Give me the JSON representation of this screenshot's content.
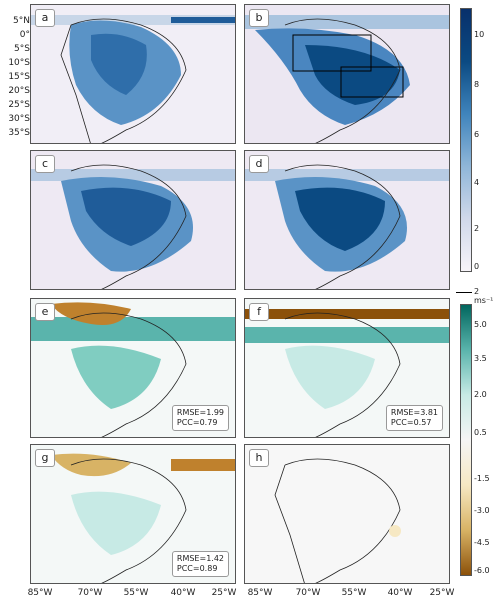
{
  "panels": {
    "a": {
      "label": "a"
    },
    "b": {
      "label": "b"
    },
    "c": {
      "label": "c"
    },
    "d": {
      "label": "d"
    },
    "e": {
      "label": "e",
      "rmse": "RMSE=1.99",
      "pcc": "PCC=0.79"
    },
    "f": {
      "label": "f",
      "rmse": "RMSE=3.81",
      "pcc": "PCC=0.57"
    },
    "g": {
      "label": "g",
      "rmse": "RMSE=1.42",
      "pcc": "PCC=0.89"
    },
    "h": {
      "label": "h"
    }
  },
  "lat_labels": [
    "5°N",
    "0°",
    "5°S",
    "10°S",
    "15°S",
    "20°S",
    "25°S",
    "30°S",
    "35°S"
  ],
  "lon_labels": [
    "85°W",
    "70°W",
    "55°W",
    "40°W",
    "25°W"
  ],
  "colorbar_top": {
    "ticks": [
      "10",
      "8",
      "6",
      "4",
      "2",
      "0"
    ],
    "colors": [
      "#f7f4f9",
      "#d0d8ea",
      "#8fb6d8",
      "#3f84bc",
      "#0b4a82",
      "#08306b"
    ]
  },
  "wind_key": "2 ms⁻¹",
  "colorbar_bottom": {
    "ticks": [
      "5.0",
      "3.5",
      "2.0",
      "0.5",
      "-1.5",
      "-3.0",
      "-4.5",
      "-6.0"
    ],
    "colors": [
      "#01665e",
      "#5ab4ac",
      "#c7eae5",
      "#f5f5f5",
      "#f6e8c3",
      "#d8b365",
      "#8c510a"
    ]
  }
}
